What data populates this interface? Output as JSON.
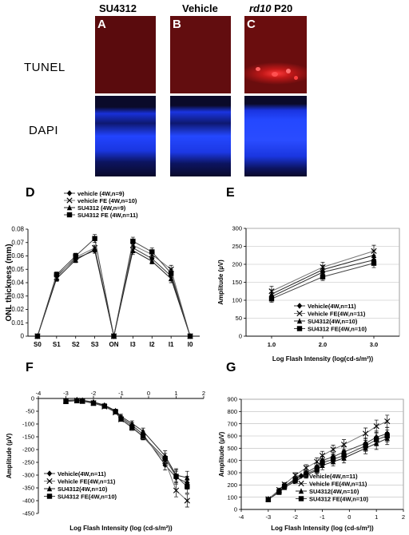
{
  "micrograph": {
    "columns": [
      {
        "title": "SU4312",
        "letter": "A"
      },
      {
        "title": "Vehicle",
        "letter": "B"
      },
      {
        "title_italic": "rd10",
        "title_rest": " P20",
        "letter": "C"
      }
    ],
    "rows": [
      "TUNEL",
      "DAPI"
    ],
    "colors": {
      "tunel_bg": "#5a0a0c",
      "tunel_spot": "#ff3030",
      "dapi_bg": "#0a0a30",
      "dapi_band": "#1e3cff"
    }
  },
  "chart_data": [
    {
      "panel": "D",
      "type": "line",
      "ylabel": "ONL thickness (mm)",
      "xlabel": "",
      "categories": [
        "S0",
        "S1",
        "S2",
        "S3",
        "ON",
        "I3",
        "I2",
        "I1",
        "I0"
      ],
      "ylim": [
        0,
        0.08
      ],
      "yticks": [
        "0",
        "0.01",
        "0.02",
        "0.03",
        "0.04",
        "0.05",
        "0.06",
        "0.07",
        "0.08"
      ],
      "legend_position": "top-left",
      "series": [
        {
          "name": "vehicle (4W,n=9)",
          "marker": "diamond",
          "values": [
            0,
            0.045,
            0.058,
            0.064,
            0,
            0.066,
            0.058,
            0.045,
            0
          ],
          "err": [
            0,
            0.002,
            0.002,
            0.002,
            0,
            0.003,
            0.002,
            0.003,
            0
          ]
        },
        {
          "name": "vehicle FE  (4W,n=10)",
          "marker": "x",
          "values": [
            0,
            0.044,
            0.059,
            0.066,
            0,
            0.068,
            0.061,
            0.05,
            0
          ],
          "err": [
            0,
            0.002,
            0.002,
            0.002,
            0,
            0.003,
            0.002,
            0.003,
            0
          ]
        },
        {
          "name": "SU4312  (4W,n=9)",
          "marker": "triangle",
          "values": [
            0,
            0.043,
            0.057,
            0.065,
            0,
            0.064,
            0.056,
            0.043,
            0
          ],
          "err": [
            0,
            0.002,
            0.002,
            0.002,
            0,
            0.003,
            0.002,
            0.003,
            0
          ]
        },
        {
          "name": "SU4312 FE  (4W,n=11)",
          "marker": "square",
          "values": [
            0,
            0.046,
            0.06,
            0.073,
            0,
            0.071,
            0.063,
            0.047,
            0
          ],
          "err": [
            0,
            0.002,
            0.002,
            0.003,
            0,
            0.003,
            0.003,
            0.003,
            0
          ]
        }
      ]
    },
    {
      "panel": "E",
      "type": "line",
      "xlabel": "Log Flash Intensity (log(cd-s/m²))",
      "ylabel": "Amplitude (µV)",
      "categories": [
        "1.0",
        "2.0",
        "3.0"
      ],
      "ylim": [
        0,
        300
      ],
      "yticks": [
        "0",
        "50",
        "100",
        "150",
        "200",
        "250",
        "300"
      ],
      "legend_position": "bottom-right",
      "series": [
        {
          "name": "Vehicle(4W,n=11)",
          "marker": "diamond",
          "values": [
            110,
            178,
            212
          ],
          "err": [
            12,
            12,
            14
          ]
        },
        {
          "name": "Vehicle FE(4W,n=11)",
          "marker": "x",
          "values": [
            125,
            192,
            237
          ],
          "err": [
            14,
            14,
            16
          ]
        },
        {
          "name": "SU4312(4W,n=10)",
          "marker": "triangle",
          "values": [
            117,
            185,
            225
          ],
          "err": [
            12,
            12,
            14
          ]
        },
        {
          "name": "SU4312  FE(4W,n=10)",
          "marker": "square",
          "values": [
            104,
            165,
            203
          ],
          "err": [
            10,
            10,
            12
          ]
        }
      ]
    },
    {
      "panel": "F",
      "type": "line",
      "xlabel": "Log Flash Intensity (log (cd-s/m²))",
      "ylabel": "Amplitude (µV)",
      "xlim": [
        -4,
        2
      ],
      "ylim": [
        -450,
        0
      ],
      "xticks": [
        "-4",
        "-3",
        "-2",
        "-1",
        "0",
        "1",
        "2"
      ],
      "yticks": [
        "0",
        "-50",
        "-100",
        "-150",
        "-200",
        "-250",
        "-300",
        "-350",
        "-400",
        "-450"
      ],
      "x_axis_position": "top",
      "legend_position": "bottom-left",
      "x": [
        -3,
        -2.6,
        -2.4,
        -2,
        -1.6,
        -1.2,
        -1,
        -0.6,
        -0.2,
        0.6,
        1,
        1.4
      ],
      "series": [
        {
          "name": "Vehicle(4W,n=11)",
          "marker": "diamond",
          "values": [
            -8,
            -6,
            -8,
            -15,
            -28,
            -50,
            -75,
            -105,
            -140,
            -260,
            -310,
            -330
          ],
          "err": [
            3,
            3,
            3,
            4,
            5,
            6,
            8,
            10,
            12,
            20,
            25,
            25
          ]
        },
        {
          "name": "Vehicle FE(4W,n=11)",
          "marker": "x",
          "values": [
            -10,
            -8,
            -10,
            -18,
            -32,
            -55,
            -82,
            -115,
            -150,
            -245,
            -360,
            -400
          ],
          "err": [
            3,
            3,
            3,
            4,
            5,
            6,
            8,
            10,
            12,
            20,
            25,
            25
          ]
        },
        {
          "name": "SU4312(4W,n=10)",
          "marker": "triangle",
          "values": [
            -8,
            -5,
            -7,
            -14,
            -26,
            -48,
            -70,
            -98,
            -128,
            -225,
            -300,
            -310
          ],
          "err": [
            3,
            3,
            3,
            4,
            5,
            6,
            8,
            10,
            12,
            20,
            25,
            25
          ]
        },
        {
          "name": "SU4312  FE(4W,n=10)",
          "marker": "square",
          "values": [
            -12,
            -9,
            -11,
            -19,
            -30,
            -52,
            -80,
            -112,
            -148,
            -235,
            -305,
            -345
          ],
          "err": [
            3,
            3,
            3,
            4,
            5,
            6,
            8,
            10,
            12,
            20,
            25,
            25
          ]
        }
      ]
    },
    {
      "panel": "G",
      "type": "line",
      "xlabel": "Log Flash Intensity (log (cd-s/m²))",
      "ylabel": "Amplitude (µV)",
      "xlim": [
        -4,
        2
      ],
      "ylim": [
        0,
        900
      ],
      "xticks": [
        "-4",
        "-3",
        "-2",
        "-1",
        "0",
        "1",
        "2"
      ],
      "yticks": [
        "0",
        "100",
        "200",
        "300",
        "400",
        "500",
        "600",
        "700",
        "800",
        "900"
      ],
      "legend_position": "bottom-right",
      "x": [
        -3,
        -2.6,
        -2.4,
        -2,
        -1.6,
        -1.2,
        -1,
        -0.6,
        -0.2,
        0.6,
        1,
        1.4
      ],
      "series": [
        {
          "name": "Vehicle(4W,n=11)",
          "marker": "diamond",
          "values": [
            85,
            150,
            190,
            250,
            300,
            350,
            400,
            430,
            470,
            540,
            590,
            620
          ],
          "err": [
            10,
            15,
            15,
            20,
            25,
            30,
            35,
            35,
            40,
            45,
            50,
            50
          ]
        },
        {
          "name": "Vehicle FE(4W,n=11)",
          "marker": "x",
          "values": [
            85,
            160,
            205,
            280,
            340,
            390,
            440,
            490,
            530,
            620,
            680,
            720
          ],
          "err": [
            10,
            15,
            15,
            20,
            25,
            30,
            35,
            35,
            40,
            45,
            50,
            50
          ]
        },
        {
          "name": "SU4312(4W,n=10)",
          "marker": "triangle",
          "values": [
            82,
            140,
            180,
            230,
            280,
            320,
            360,
            390,
            420,
            500,
            540,
            580
          ],
          "err": [
            10,
            15,
            15,
            20,
            25,
            30,
            35,
            35,
            40,
            45,
            50,
            50
          ]
        },
        {
          "name": "SU4312  FE(4W,n=10)",
          "marker": "square",
          "values": [
            80,
            145,
            190,
            240,
            290,
            330,
            380,
            410,
            440,
            520,
            570,
            600
          ],
          "err": [
            10,
            15,
            15,
            20,
            25,
            30,
            35,
            35,
            40,
            45,
            50,
            50
          ]
        }
      ]
    }
  ]
}
